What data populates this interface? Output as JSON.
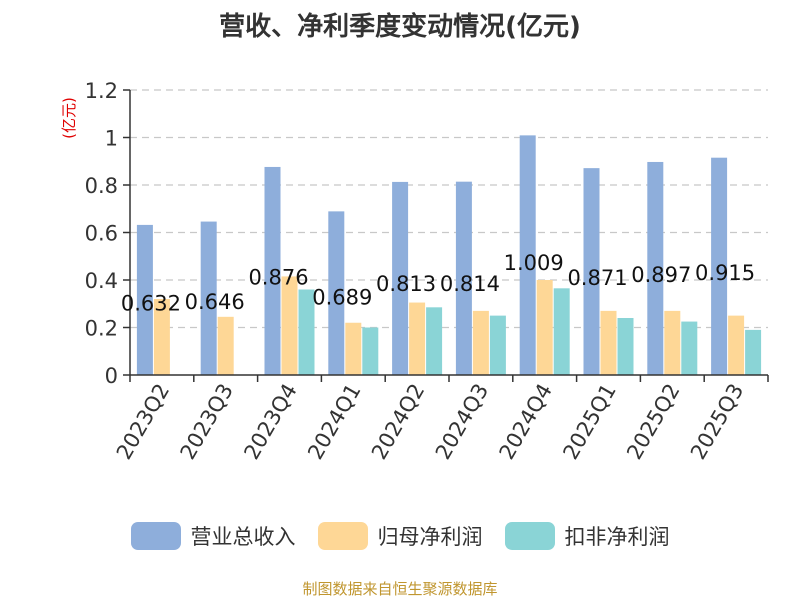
{
  "chart_data": {
    "type": "bar",
    "title": "营收、净利季度变动情况(亿元)",
    "ylabel": "(亿元)",
    "ylim": [
      0,
      1.2
    ],
    "yticks": [
      "0",
      "0.2",
      "0.4",
      "0.6",
      "0.8",
      "1",
      "1.2"
    ],
    "grid": true,
    "legend_position": "bottom",
    "categories": [
      "2023Q2",
      "2023Q3",
      "2023Q4",
      "2024Q1",
      "2024Q2",
      "2024Q3",
      "2024Q4",
      "2025Q1",
      "2025Q2",
      "2025Q3"
    ],
    "series": [
      {
        "name": "营业总收入",
        "color": "#8eaedb",
        "values": [
          0.632,
          0.646,
          0.876,
          0.689,
          0.813,
          0.814,
          1.009,
          0.871,
          0.897,
          0.915
        ],
        "labels": [
          "0.632",
          "0.646",
          "0.876",
          "0.689",
          "0.813",
          "0.814",
          "1.009",
          "0.871",
          "0.897",
          "0.915"
        ]
      },
      {
        "name": "归母净利润",
        "color": "#fed796",
        "values": [
          0.32,
          0.245,
          0.415,
          0.22,
          0.305,
          0.27,
          0.4,
          0.27,
          0.27,
          0.25
        ]
      },
      {
        "name": "扣非净利润",
        "color": "#8ad4d6",
        "values": [
          null,
          null,
          0.36,
          0.2,
          0.285,
          0.25,
          0.365,
          0.24,
          0.225,
          0.19
        ]
      }
    ]
  },
  "footer": "制图数据来自恒生聚源数据库"
}
